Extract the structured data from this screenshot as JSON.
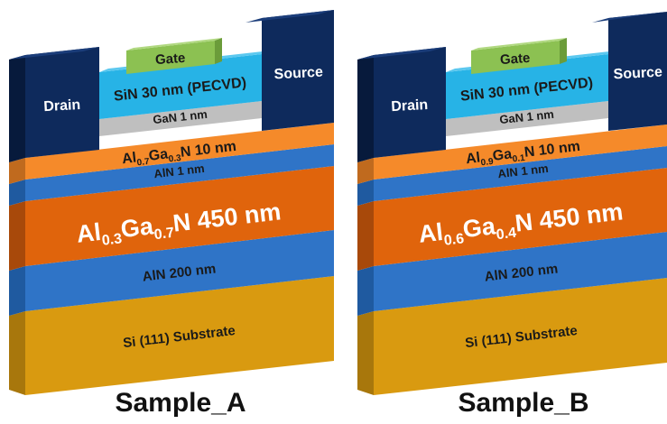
{
  "colors": {
    "substrate": "#d99a10",
    "aln_thick": "#2f74c7",
    "algan_thick": "#e0640c",
    "aln_thin": "#2f74c7",
    "algan_barrier": "#f58a2a",
    "gan_cap": "#bfbfbf",
    "sin": "#27b3e6",
    "gate": "#8cc152",
    "contact": "#0e2a5c"
  },
  "samples": [
    {
      "caption": "Sample_A",
      "drain": "Drain",
      "source": "Source",
      "gate": "Gate",
      "sin": "SiN 30 nm (PECVD)",
      "gan": "GaN 1 nm",
      "barrier": {
        "el1": "Al",
        "x1": "0.7",
        "el2": "Ga",
        "x2": "0.3",
        "rest": "N 10 nm"
      },
      "aln_thin": "AlN 1 nm",
      "buffer": {
        "el1": "Al",
        "x1": "0.3",
        "el2": "Ga",
        "x2": "0.7",
        "rest": "N 450 nm"
      },
      "aln_thick": "AlN 200 nm",
      "substrate": "Si (111) Substrate"
    },
    {
      "caption": "Sample_B",
      "drain": "Drain",
      "source": "Source",
      "gate": "Gate",
      "sin": "SiN 30 nm (PECVD)",
      "gan": "GaN 1 nm",
      "barrier": {
        "el1": "Al",
        "x1": "0.9",
        "el2": "Ga",
        "x2": "0.1",
        "rest": "N 10 nm"
      },
      "aln_thin": "AlN 1 nm",
      "buffer": {
        "el1": "Al",
        "x1": "0.6",
        "el2": "Ga",
        "x2": "0.4",
        "rest": "N 450 nm"
      },
      "aln_thick": "AlN 200 nm",
      "substrate": "Si (111) Substrate"
    }
  ]
}
